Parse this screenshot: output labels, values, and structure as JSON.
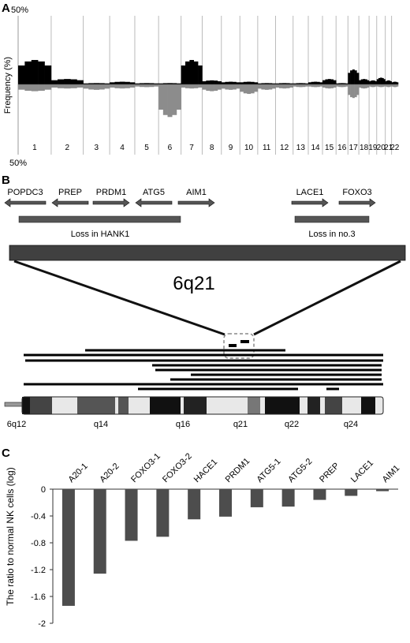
{
  "panel_a": {
    "letter": "A",
    "top_label": "50%",
    "bottom_label": "50%",
    "ylabel": "Frequency (%)"
  },
  "panel_b": {
    "letter": "B",
    "genes": [
      {
        "name": "POPDC3",
        "dir": "left"
      },
      {
        "name": "PREP",
        "dir": "left"
      },
      {
        "name": "PRDM1",
        "dir": "right"
      },
      {
        "name": "ATG5",
        "dir": "left"
      },
      {
        "name": "AIM1",
        "dir": "right"
      },
      {
        "name": "LACE1",
        "dir": "right"
      },
      {
        "name": "FOXO3",
        "dir": "right"
      }
    ],
    "loss_labels": [
      "Loss in HANK1",
      "Loss in no.3"
    ],
    "region_label": "6q21",
    "bands": [
      "6q12",
      "q14",
      "q16",
      "q21",
      "q22",
      "q24"
    ]
  },
  "chart_data": [
    {
      "type": "bar",
      "title": "",
      "xlabel": "",
      "ylabel": "Frequency (%)",
      "ylim": [
        -50,
        50
      ],
      "categories": [
        "1",
        "2",
        "3",
        "4",
        "5",
        "6",
        "7",
        "8",
        "9",
        "10",
        "11",
        "12",
        "13",
        "14",
        "15",
        "16",
        "17",
        "18",
        "19",
        "20",
        "21",
        "22"
      ],
      "series": [
        {
          "name": "",
          "values": [
            18,
            4,
            1,
            2,
            1,
            1,
            18,
            3,
            2,
            2,
            1,
            1,
            1,
            2,
            4,
            1,
            11,
            4,
            3,
            5,
            3,
            2
          ]
        },
        {
          "name": "",
          "values": [
            -5,
            -3,
            -4,
            -3,
            -2,
            -24,
            -3,
            -5,
            -4,
            -7,
            -4,
            -3,
            -2,
            -2,
            -3,
            -2,
            -10,
            -3,
            -2,
            -2,
            -2,
            -2
          ]
        }
      ]
    },
    {
      "type": "bar",
      "title": "",
      "xlabel": "",
      "ylabel": "The ratio to normal NK cells (log)",
      "ylim": [
        -2,
        0
      ],
      "yticks": [
        "-2",
        "-1.6",
        "-1.2",
        "-0.8",
        "-0.4",
        "0"
      ],
      "categories": [
        "A20-1",
        "A20-2",
        "FOXO3-1",
        "FOXO3-2",
        "HACE1",
        "PRDM1",
        "ATG5-1",
        "ATG5-2",
        "PREP",
        "LACE1",
        "AIM1"
      ],
      "values": [
        -1.74,
        -1.26,
        -0.77,
        -0.71,
        -0.45,
        -0.41,
        -0.27,
        -0.26,
        -0.16,
        -0.1,
        -0.03
      ],
      "bar_color": "#4d4d4d"
    }
  ],
  "panel_c": {
    "letter": "C"
  }
}
